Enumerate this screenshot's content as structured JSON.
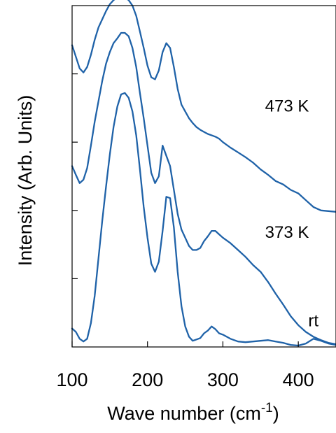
{
  "chart_data": {
    "type": "line",
    "xlabel": "Wave number (cm",
    "xlabel_sup": "-1",
    "xlabel_close": ")",
    "ylabel": "Intensity (Arb. Units)",
    "xlim": [
      100,
      450
    ],
    "x_ticks": [
      100,
      200,
      300,
      400
    ],
    "x_tick_labels": [
      "100",
      "200",
      "300",
      "400"
    ],
    "ylim": [
      0,
      5
    ],
    "y_ticks": [
      1,
      2,
      3,
      4
    ],
    "y_tick_labels_shown": false,
    "grid": false,
    "legend": "none",
    "line_color": "#1f62a8",
    "series": [
      {
        "name": "rt",
        "x": [
          100,
          105,
          110,
          115,
          120,
          125,
          130,
          135,
          140,
          145,
          150,
          155,
          160,
          165,
          170,
          175,
          180,
          185,
          190,
          195,
          200,
          205,
          210,
          215,
          220,
          225,
          230,
          235,
          240,
          245,
          250,
          255,
          260,
          265,
          270,
          275,
          280,
          285,
          290,
          295,
          300,
          310,
          320,
          330,
          340,
          350,
          360,
          370,
          380,
          390,
          400,
          410,
          420,
          430,
          440,
          450
        ],
        "y": [
          0.27,
          0.22,
          0.12,
          0.08,
          0.12,
          0.35,
          0.75,
          1.3,
          1.85,
          2.35,
          2.82,
          3.22,
          3.52,
          3.7,
          3.72,
          3.65,
          3.45,
          3.1,
          2.6,
          2.05,
          1.6,
          1.22,
          1.1,
          1.25,
          1.7,
          2.2,
          2.18,
          1.75,
          1.1,
          0.6,
          0.3,
          0.15,
          0.09,
          0.11,
          0.13,
          0.2,
          0.24,
          0.3,
          0.26,
          0.2,
          0.18,
          0.12,
          0.08,
          0.07,
          0.08,
          0.09,
          0.1,
          0.08,
          0.06,
          0.03,
          0.02,
          0.05,
          0.12,
          0.09,
          0.05,
          0.03
        ]
      },
      {
        "name": "373 K",
        "x": [
          100,
          105,
          110,
          115,
          120,
          125,
          130,
          135,
          140,
          145,
          150,
          155,
          160,
          165,
          170,
          175,
          180,
          185,
          190,
          195,
          200,
          205,
          210,
          215,
          220,
          225,
          230,
          235,
          240,
          245,
          250,
          255,
          260,
          265,
          270,
          275,
          280,
          285,
          290,
          295,
          300,
          310,
          320,
          330,
          340,
          350,
          360,
          370,
          380,
          390,
          400,
          410,
          420,
          430,
          440,
          450
        ],
        "y": [
          2.65,
          2.52,
          2.4,
          2.45,
          2.62,
          2.95,
          3.3,
          3.6,
          3.9,
          4.15,
          4.32,
          4.45,
          4.52,
          4.6,
          4.6,
          4.55,
          4.38,
          4.1,
          3.72,
          3.35,
          2.95,
          2.55,
          2.4,
          2.5,
          2.95,
          2.8,
          2.65,
          2.3,
          1.95,
          1.72,
          1.6,
          1.48,
          1.42,
          1.42,
          1.45,
          1.55,
          1.62,
          1.7,
          1.7,
          1.65,
          1.6,
          1.52,
          1.42,
          1.32,
          1.2,
          1.1,
          0.95,
          0.78,
          0.62,
          0.45,
          0.32,
          0.22,
          0.15,
          0.1,
          0.06,
          0.04
        ]
      },
      {
        "name": "473 K",
        "x": [
          100,
          105,
          110,
          115,
          120,
          125,
          130,
          135,
          140,
          145,
          150,
          155,
          160,
          165,
          170,
          175,
          180,
          185,
          190,
          195,
          200,
          205,
          210,
          215,
          220,
          225,
          230,
          235,
          240,
          245,
          250,
          255,
          260,
          265,
          270,
          275,
          280,
          285,
          290,
          295,
          300,
          310,
          320,
          330,
          340,
          350,
          360,
          370,
          380,
          390,
          400,
          410,
          420,
          430,
          440,
          450
        ],
        "y": [
          4.42,
          4.25,
          4.08,
          4.02,
          4.1,
          4.28,
          4.5,
          4.68,
          4.8,
          4.92,
          5.02,
          5.08,
          5.12,
          5.14,
          5.12,
          5.08,
          5.0,
          4.85,
          4.62,
          4.38,
          4.12,
          3.95,
          3.92,
          4.05,
          4.32,
          4.45,
          4.38,
          4.1,
          3.78,
          3.55,
          3.45,
          3.35,
          3.28,
          3.22,
          3.18,
          3.15,
          3.12,
          3.1,
          3.08,
          3.05,
          3.0,
          2.92,
          2.85,
          2.78,
          2.7,
          2.6,
          2.52,
          2.43,
          2.38,
          2.3,
          2.25,
          2.15,
          2.05,
          2.0,
          1.99,
          1.98
        ]
      }
    ],
    "annotations": [
      {
        "text": "473 K",
        "x": 385,
        "y": 3.45
      },
      {
        "text": "373 K",
        "x": 385,
        "y": 1.6
      },
      {
        "text": "rt",
        "x": 420,
        "y": 0.3
      }
    ]
  }
}
